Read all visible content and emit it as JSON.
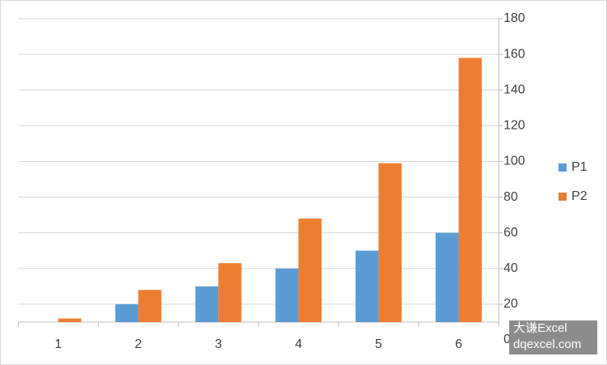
{
  "chart_data": {
    "type": "bar",
    "categories": [
      "1",
      "2",
      "3",
      "4",
      "5",
      "6"
    ],
    "series": [
      {
        "name": "P1",
        "color": "#5b9bd5",
        "values": [
          10,
          20,
          30,
          40,
          50,
          60
        ]
      },
      {
        "name": "P2",
        "color": "#ed7d31",
        "values": [
          12,
          28,
          43,
          68,
          99,
          158
        ]
      }
    ],
    "ylim": [
      0,
      180
    ],
    "yticks": [
      0,
      20,
      40,
      60,
      80,
      100,
      120,
      140,
      160,
      180
    ],
    "y_axis_side": "right",
    "x_axis_crosses_at": 10,
    "grid": true,
    "legend": "right"
  },
  "watermark": {
    "line1": "大谦Excel",
    "line2": "dqexcel.com"
  }
}
